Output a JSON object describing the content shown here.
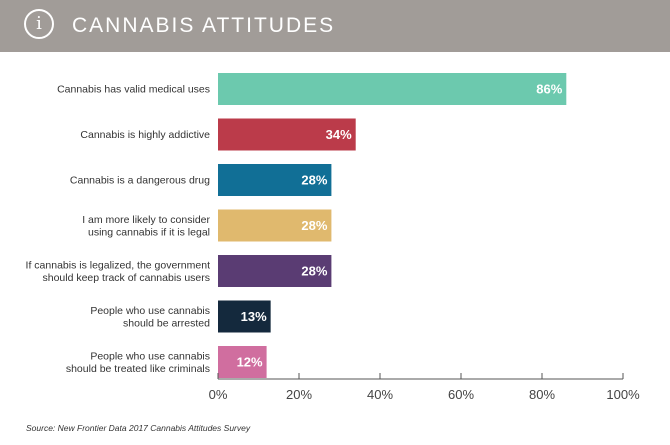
{
  "header": {
    "icon": "info-icon",
    "title": "CANNABIS ATTITUDES",
    "background_color": "#a19c98"
  },
  "source": "Source: New Frontier Data 2017 Cannabis Attitudes Survey",
  "chart_data": {
    "type": "bar",
    "orientation": "horizontal",
    "title": "CANNABIS ATTITUDES",
    "xlim": [
      0,
      100
    ],
    "x_ticks": [
      "0%",
      "20%",
      "40%",
      "60%",
      "80%",
      "100%"
    ],
    "grid": false,
    "categories": [
      [
        "Cannabis has valid medical uses"
      ],
      [
        "Cannabis is highly addictive"
      ],
      [
        "Cannabis is a dangerous drug"
      ],
      [
        "I am more likely to consider",
        "using cannabis if it is legal"
      ],
      [
        "If cannabis is legalized, the government",
        "should keep track of cannabis users"
      ],
      [
        "People who use cannabis",
        "should be arrested"
      ],
      [
        "People who use cannabis",
        "should be treated like criminals"
      ]
    ],
    "values": [
      86,
      34,
      28,
      28,
      28,
      13,
      12
    ],
    "value_labels": [
      "86%",
      "34%",
      "28%",
      "28%",
      "28%",
      "13%",
      "12%"
    ],
    "colors": [
      "#6cc9ae",
      "#bb3b4a",
      "#116f96",
      "#e0b96e",
      "#5a3c73",
      "#14293d",
      "#d06e9f"
    ]
  }
}
